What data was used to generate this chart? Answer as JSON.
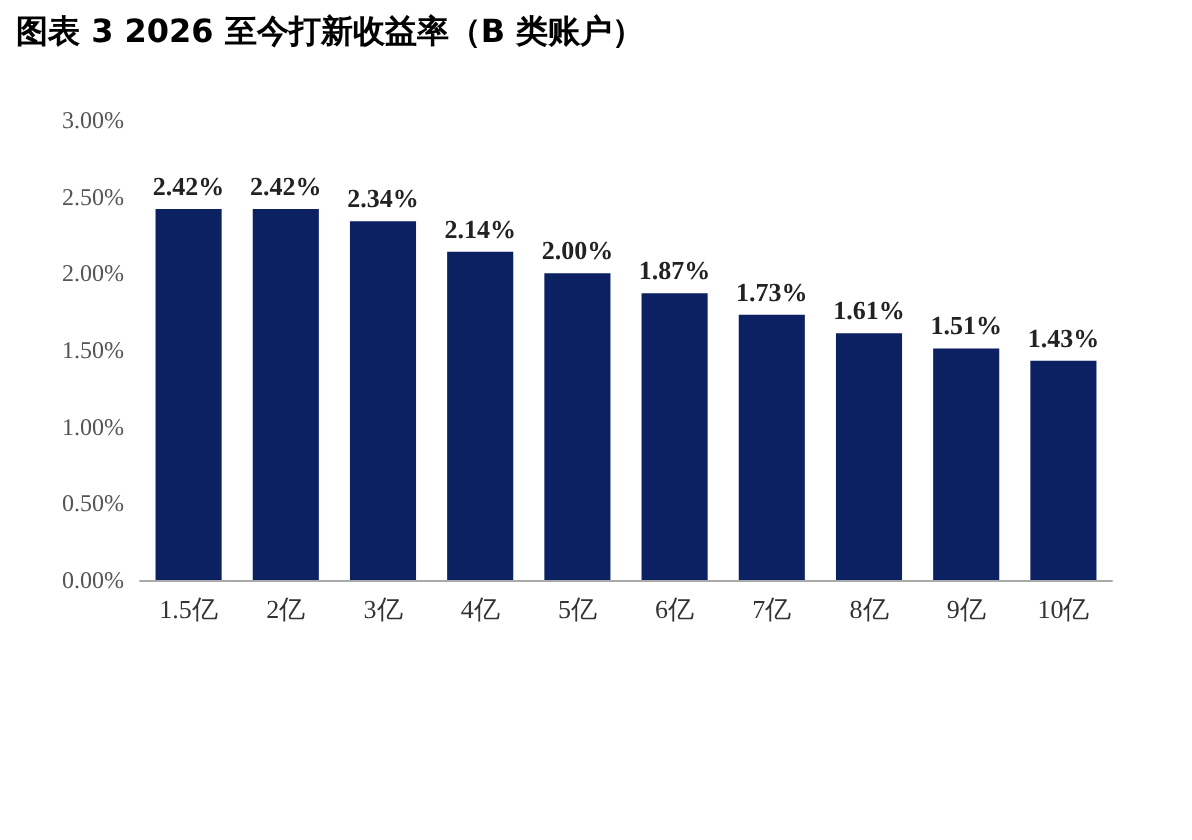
{
  "chart_data": {
    "type": "bar",
    "title": "图表 3 2026 至今打新收益率（B 类账户）",
    "categories": [
      "1.5亿",
      "2亿",
      "3亿",
      "4亿",
      "5亿",
      "6亿",
      "7亿",
      "8亿",
      "9亿",
      "10亿"
    ],
    "values": [
      2.42,
      2.42,
      2.34,
      2.14,
      2.0,
      1.87,
      1.73,
      1.61,
      1.51,
      1.43
    ],
    "value_labels": [
      "2.42%",
      "2.42%",
      "2.34%",
      "2.14%",
      "2.00%",
      "1.87%",
      "1.73%",
      "1.61%",
      "1.51%",
      "1.43%"
    ],
    "color": "#0b2161",
    "ylim": [
      0,
      3
    ],
    "yticks": [
      {
        "value": 0,
        "label": "0.00%"
      },
      {
        "value": 0.5,
        "label": "0.50%"
      },
      {
        "value": 1,
        "label": "1.00%"
      },
      {
        "value": 1.5,
        "label": "1.50%"
      },
      {
        "value": 2,
        "label": "2.00%"
      },
      {
        "value": 2.5,
        "label": "2.50%"
      },
      {
        "value": 3,
        "label": "3.00%"
      }
    ],
    "grid": false
  }
}
